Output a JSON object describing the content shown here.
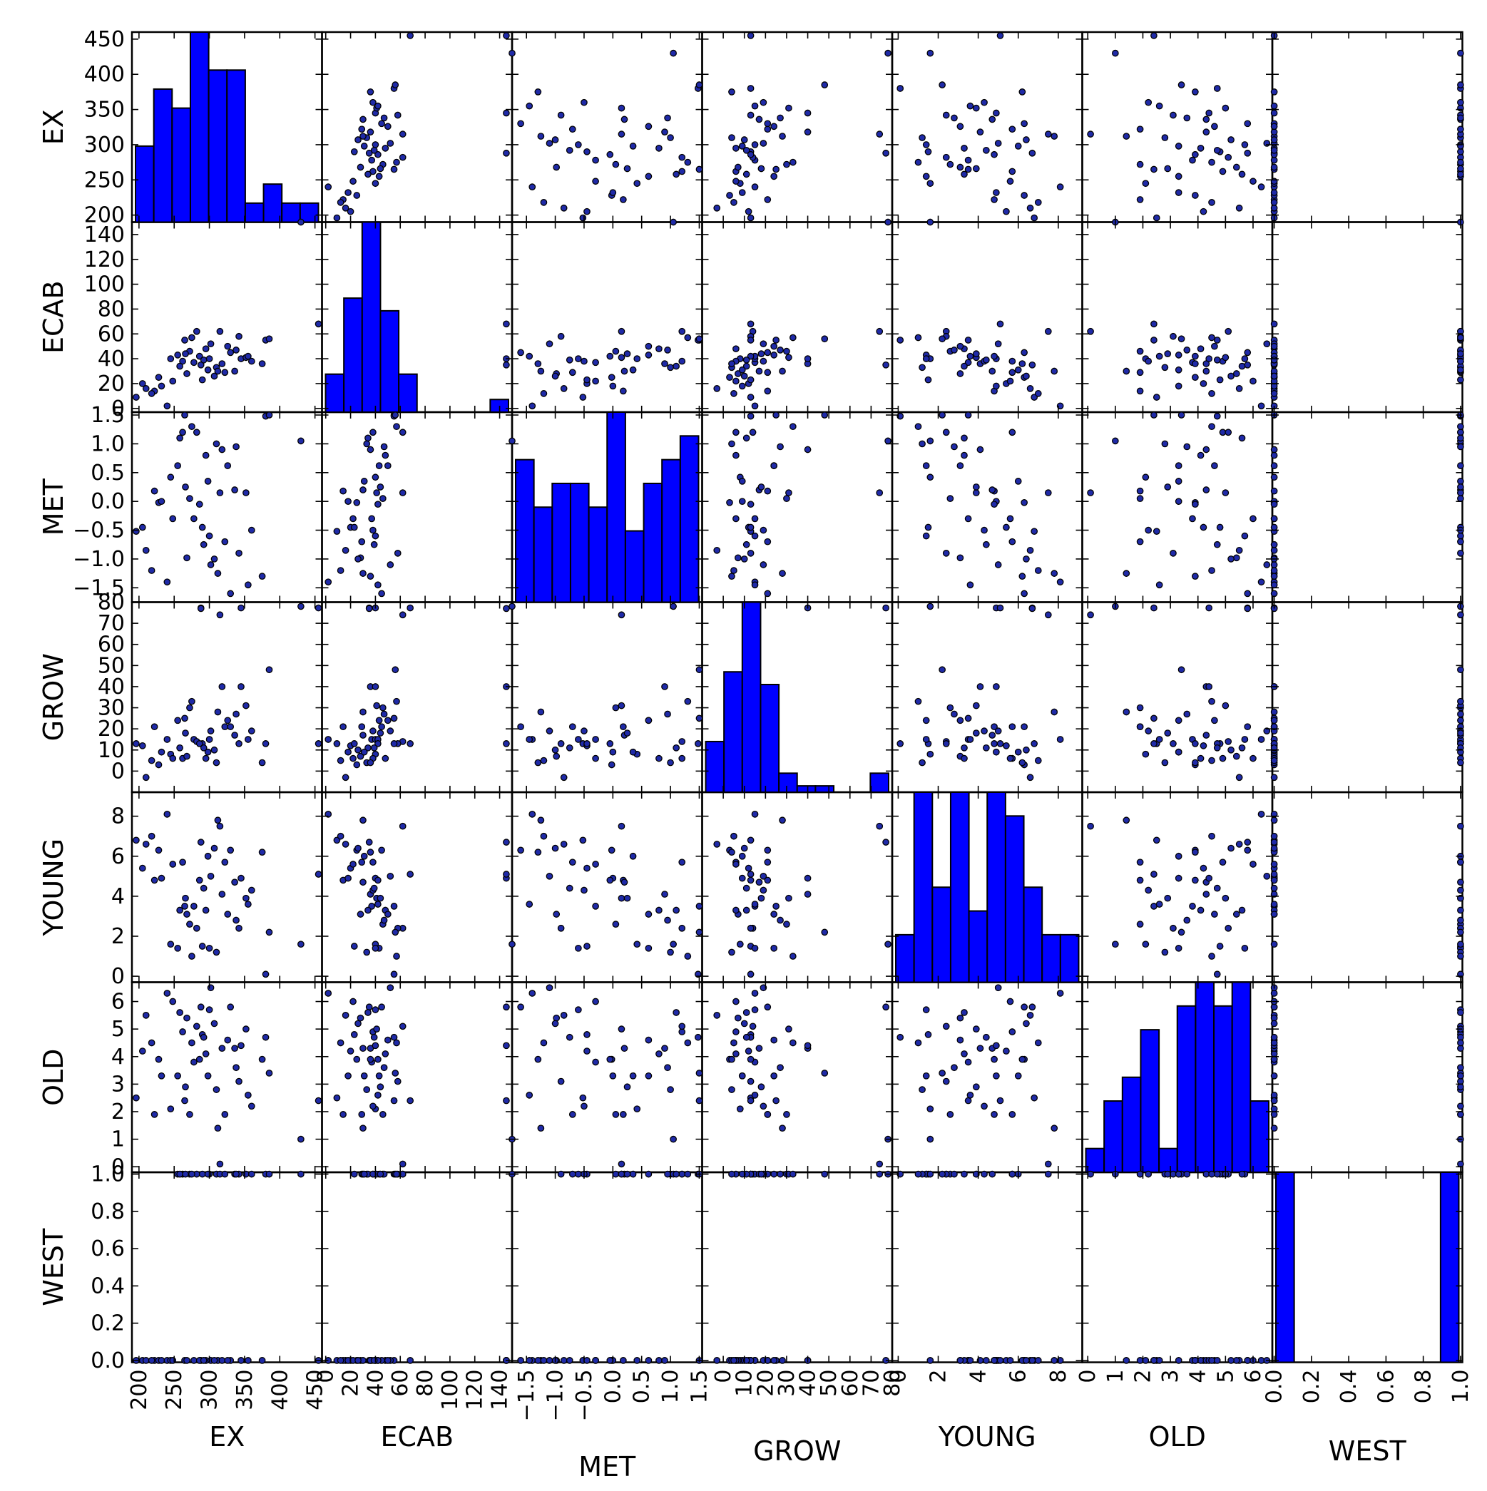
{
  "chart_data": {
    "type": "scatter-matrix",
    "title": "",
    "variables": [
      "EX",
      "ECAB",
      "MET",
      "GROW",
      "YOUNG",
      "OLD",
      "WEST"
    ],
    "axes": {
      "EX": {
        "lim": [
          190,
          460
        ],
        "ticks": [
          200,
          250,
          300,
          350,
          400,
          450
        ],
        "labels": [
          "200",
          "250",
          "300",
          "350",
          "400",
          "450"
        ]
      },
      "ECAB": {
        "lim": [
          -3,
          150
        ],
        "ticks": [
          0,
          20,
          40,
          60,
          80,
          100,
          120,
          140
        ],
        "labels": [
          "0",
          "20",
          "40",
          "60",
          "80",
          "100",
          "120",
          "140"
        ]
      },
      "MET": {
        "lim": [
          -1.75,
          1.55
        ],
        "ticks": [
          -1.5,
          -1.0,
          -0.5,
          0.0,
          0.5,
          1.0,
          1.5
        ],
        "labels": [
          "−1.5",
          "−1.0",
          "−0.5",
          "0.0",
          "0.5",
          "1.0",
          "1.5"
        ]
      },
      "GROW": {
        "lim": [
          -10,
          80
        ],
        "ticks": [
          0,
          10,
          20,
          30,
          40,
          50,
          60,
          70,
          80
        ],
        "labels": [
          "0",
          "10",
          "20",
          "30",
          "40",
          "50",
          "60",
          "70",
          "80"
        ]
      },
      "YOUNG": {
        "lim": [
          -0.3,
          9.2
        ],
        "ticks": [
          0,
          2,
          4,
          6,
          8
        ],
        "labels": [
          "0",
          "2",
          "4",
          "6",
          "8"
        ]
      },
      "OLD": {
        "lim": [
          -0.2,
          6.7
        ],
        "ticks": [
          0,
          1,
          2,
          3,
          4,
          5,
          6
        ],
        "labels": [
          "0",
          "1",
          "2",
          "3",
          "4",
          "5",
          "6"
        ]
      },
      "WEST": {
        "lim": [
          -0.01,
          1.01
        ],
        "ticks": [
          0.0,
          0.2,
          0.4,
          0.6,
          0.8,
          1.0
        ],
        "labels": [
          "0.0",
          "0.2",
          "0.4",
          "0.6",
          "0.8",
          "1.0"
        ]
      }
    },
    "histograms": {
      "EX": [
        4,
        7,
        6,
        10,
        8,
        8,
        1,
        2,
        1,
        1
      ],
      "ECAB": [
        3,
        9,
        15,
        8,
        3,
        0,
        0,
        0,
        0,
        1
      ],
      "MET": [
        6,
        4,
        5,
        5,
        4,
        8,
        3,
        5,
        6,
        7
      ],
      "GROW": [
        8,
        19,
        30,
        17,
        3,
        1,
        1,
        0,
        0,
        3
      ],
      "YOUNG": [
        1,
        4,
        2,
        4,
        1.5,
        4,
        3.5,
        2,
        1,
        1
      ],
      "OLD": [
        1,
        3,
        4,
        6,
        1,
        7,
        8,
        7,
        8,
        3
      ],
      "WEST": [
        25,
        0,
        0,
        0,
        0,
        0,
        0,
        0,
        0,
        25
      ]
    },
    "records": [
      {
        "EX": 196,
        "ECAB": 9,
        "MET": -0.52,
        "GROW": 13,
        "YOUNG": 6.8,
        "OLD": 2.5,
        "WEST": 0
      },
      {
        "EX": 205,
        "ECAB": 20,
        "MET": -0.45,
        "GROW": 12,
        "YOUNG": 5.4,
        "OLD": 4.2,
        "WEST": 0
      },
      {
        "EX": 210,
        "ECAB": 16,
        "MET": -0.85,
        "GROW": -3,
        "YOUNG": 6.6,
        "OLD": 5.5,
        "WEST": 0
      },
      {
        "EX": 222,
        "ECAB": 14,
        "MET": 0.18,
        "GROW": 21,
        "YOUNG": 4.8,
        "OLD": 1.9,
        "WEST": 0
      },
      {
        "EX": 228,
        "ECAB": 25,
        "MET": -0.02,
        "GROW": 3,
        "YOUNG": 6.3,
        "OLD": 3.9,
        "WEST": 0
      },
      {
        "EX": 232,
        "ECAB": 18,
        "MET": 0.0,
        "GROW": 9,
        "YOUNG": 4.9,
        "OLD": 3.3,
        "WEST": 0
      },
      {
        "EX": 240,
        "ECAB": 2,
        "MET": -1.4,
        "GROW": 15,
        "YOUNG": 8.1,
        "OLD": 6.3,
        "WEST": 0
      },
      {
        "EX": 245,
        "ECAB": 40,
        "MET": 0.42,
        "GROW": 8,
        "YOUNG": 1.6,
        "OLD": 2.1,
        "WEST": 0
      },
      {
        "EX": 255,
        "ECAB": 43,
        "MET": 0.62,
        "GROW": 24,
        "YOUNG": 1.4,
        "OLD": 3.3,
        "WEST": 1
      },
      {
        "EX": 262,
        "ECAB": 38,
        "MET": 1.2,
        "GROW": 6,
        "YOUNG": 5.7,
        "OLD": 4.9,
        "WEST": 1
      },
      {
        "EX": 265,
        "ECAB": 55,
        "MET": 1.5,
        "GROW": 25,
        "YOUNG": 3.5,
        "OLD": 2.4,
        "WEST": 0
      },
      {
        "EX": 268,
        "ECAB": 28,
        "MET": -0.98,
        "GROW": 7,
        "YOUNG": 3.1,
        "OLD": 5.4,
        "WEST": 0
      },
      {
        "EX": 272,
        "ECAB": 46,
        "MET": 0.05,
        "GROW": 30,
        "YOUNG": 2.6,
        "OLD": 1.9,
        "WEST": 1
      },
      {
        "EX": 278,
        "ECAB": 37,
        "MET": -0.3,
        "GROW": 15,
        "YOUNG": 3.5,
        "OLD": 3.8,
        "WEST": 0
      },
      {
        "EX": 282,
        "ECAB": 62,
        "MET": 1.2,
        "GROW": 14,
        "YOUNG": 2.4,
        "OLD": 5.1,
        "WEST": 1
      },
      {
        "EX": 288,
        "ECAB": 35,
        "MET": -1.85,
        "GROW": 77,
        "YOUNG": 6.7,
        "OLD": 5.8,
        "WEST": 0
      },
      {
        "EX": 290,
        "ECAB": 23,
        "MET": -0.45,
        "GROW": 13,
        "YOUNG": 1.5,
        "OLD": 4.8,
        "WEST": 1
      },
      {
        "EX": 295,
        "ECAB": 48,
        "MET": 0.8,
        "GROW": 6,
        "YOUNG": 3.3,
        "OLD": 4.1,
        "WEST": 0
      },
      {
        "EX": 300,
        "ECAB": 40,
        "MET": -0.6,
        "GROW": 15,
        "YOUNG": 1.4,
        "OLD": 5.7,
        "WEST": 1
      },
      {
        "EX": 302,
        "ECAB": 52,
        "MET": -1.1,
        "GROW": 19,
        "YOUNG": 5.0,
        "OLD": 6.5,
        "WEST": 0
      },
      {
        "EX": 310,
        "ECAB": 33,
        "MET": 1.0,
        "GROW": 4,
        "YOUNG": 1.2,
        "OLD": 2.8,
        "WEST": 1
      },
      {
        "EX": 312,
        "ECAB": 30,
        "MET": -1.25,
        "GROW": 28,
        "YOUNG": 7.8,
        "OLD": 1.4,
        "WEST": 0
      },
      {
        "EX": 315,
        "ECAB": 62,
        "MET": 0.15,
        "GROW": 74,
        "YOUNG": 7.5,
        "OLD": 0.1,
        "WEST": 1
      },
      {
        "EX": 318,
        "ECAB": 36,
        "MET": 0.9,
        "GROW": 40,
        "YOUNG": 4.1,
        "OLD": 4.3,
        "WEST": 0
      },
      {
        "EX": 322,
        "ECAB": 29,
        "MET": -0.7,
        "GROW": 21,
        "YOUNG": 5.7,
        "OLD": 1.9,
        "WEST": 1
      },
      {
        "EX": 330,
        "ECAB": 45,
        "MET": -1.6,
        "GROW": 21,
        "YOUNG": 6.3,
        "OLD": 5.8,
        "WEST": 0
      },
      {
        "EX": 336,
        "ECAB": 30,
        "MET": 0.2,
        "GROW": 17,
        "YOUNG": 4.7,
        "OLD": 4.3,
        "WEST": 1
      },
      {
        "EX": 342,
        "ECAB": 58,
        "MET": -0.9,
        "GROW": 13,
        "YOUNG": 2.4,
        "OLD": 3.1,
        "WEST": 1
      },
      {
        "EX": 345,
        "ECAB": 40,
        "MET": -1.85,
        "GROW": 40,
        "YOUNG": 4.9,
        "OLD": 4.4,
        "WEST": 0
      },
      {
        "EX": 352,
        "ECAB": 41,
        "MET": 0.15,
        "GROW": 31,
        "YOUNG": 3.9,
        "OLD": 5.0,
        "WEST": 1
      },
      {
        "EX": 355,
        "ECAB": 42,
        "MET": -1.45,
        "GROW": 15,
        "YOUNG": 3.6,
        "OLD": 2.6,
        "WEST": 0
      },
      {
        "EX": 375,
        "ECAB": 36,
        "MET": -1.3,
        "GROW": 4,
        "YOUNG": 6.2,
        "OLD": 3.9,
        "WEST": 0
      },
      {
        "EX": 380,
        "ECAB": 55,
        "MET": 1.48,
        "GROW": 13,
        "YOUNG": 0.1,
        "OLD": 4.7,
        "WEST": 1
      },
      {
        "EX": 385,
        "ECAB": 56,
        "MET": 1.5,
        "GROW": 48,
        "YOUNG": 2.2,
        "OLD": 3.4,
        "WEST": 1
      },
      {
        "EX": 430,
        "ECAB": 150,
        "MET": 1.05,
        "GROW": 78,
        "YOUNG": 1.6,
        "OLD": 1.0,
        "WEST": 1
      },
      {
        "EX": 455,
        "ECAB": 68,
        "MET": -1.85,
        "GROW": 13,
        "YOUNG": 5.1,
        "OLD": 2.4,
        "WEST": 0
      },
      {
        "EX": 258,
        "ECAB": 34,
        "MET": 1.1,
        "GROW": 11,
        "YOUNG": 3.3,
        "OLD": 5.6,
        "WEST": 1
      },
      {
        "EX": 286,
        "ECAB": 42,
        "MET": -0.05,
        "GROW": 13,
        "YOUNG": 4.8,
        "OLD": 3.9,
        "WEST": 0
      },
      {
        "EX": 298,
        "ECAB": 31,
        "MET": 0.35,
        "GROW": 9,
        "YOUNG": 6.0,
        "OLD": 3.3,
        "WEST": 1
      },
      {
        "EX": 326,
        "ECAB": 50,
        "MET": 0.62,
        "GROW": 24,
        "YOUNG": 3.1,
        "OLD": 4.6,
        "WEST": 0
      },
      {
        "EX": 360,
        "ECAB": 38,
        "MET": -0.5,
        "GROW": 19,
        "YOUNG": 4.3,
        "OLD": 2.2,
        "WEST": 1
      },
      {
        "EX": 248,
        "ECAB": 22,
        "MET": -0.3,
        "GROW": 6,
        "YOUNG": 5.6,
        "OLD": 6.0,
        "WEST": 0
      },
      {
        "EX": 275,
        "ECAB": 57,
        "MET": 1.3,
        "GROW": 33,
        "YOUNG": 1.0,
        "OLD": 4.5,
        "WEST": 1
      },
      {
        "EX": 307,
        "ECAB": 26,
        "MET": -1.0,
        "GROW": 10,
        "YOUNG": 6.4,
        "OLD": 5.2,
        "WEST": 0
      },
      {
        "EX": 338,
        "ECAB": 47,
        "MET": 0.95,
        "GROW": 27,
        "YOUNG": 2.8,
        "OLD": 3.6,
        "WEST": 1
      },
      {
        "EX": 218,
        "ECAB": 12,
        "MET": -1.2,
        "GROW": 5,
        "YOUNG": 7.0,
        "OLD": 4.5,
        "WEST": 0
      },
      {
        "EX": 266,
        "ECAB": 44,
        "MET": 0.25,
        "GROW": 18,
        "YOUNG": 3.9,
        "OLD": 2.9,
        "WEST": 1
      },
      {
        "EX": 292,
        "ECAB": 39,
        "MET": -0.75,
        "GROW": 11,
        "YOUNG": 4.4,
        "OLD": 4.7,
        "WEST": 0
      }
    ]
  }
}
